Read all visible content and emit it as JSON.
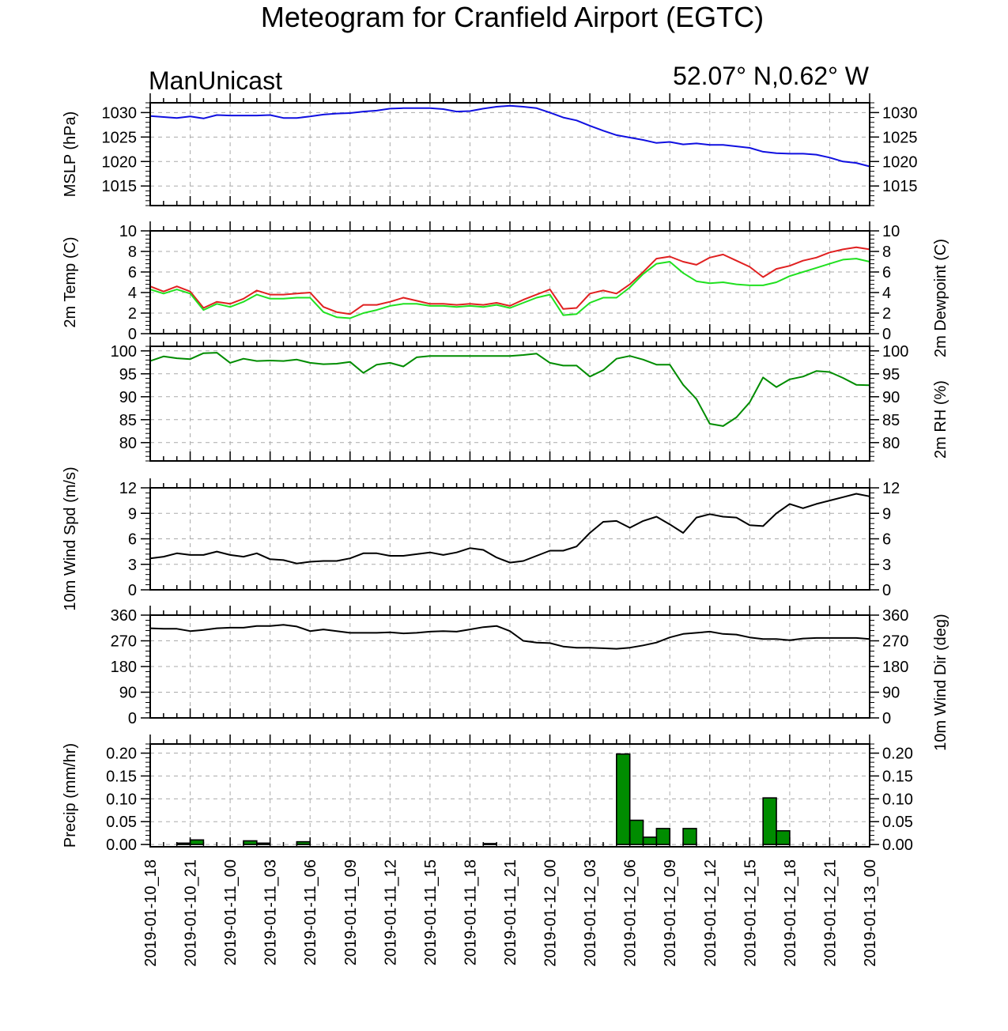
{
  "title": "Meteogram for Cranfield Airport (EGTC)",
  "subtitle_left": "ManUnicast",
  "subtitle_right": "52.07° N,0.62° W",
  "colors": {
    "mslp": "#1010e0",
    "temp": "#e02020",
    "dewpoint": "#20e020",
    "rh": "#008c00",
    "wind": "#000000",
    "precip_fill": "#008c00",
    "grid": "#aaaaaa"
  },
  "x_tick_labels": [
    "2019-01-10_18",
    "2019-01-10_21",
    "2019-01-11_00",
    "2019-01-11_03",
    "2019-01-11_06",
    "2019-01-11_09",
    "2019-01-11_12",
    "2019-01-11_15",
    "2019-01-11_18",
    "2019-01-11_21",
    "2019-01-12_00",
    "2019-01-12_03",
    "2019-01-12_06",
    "2019-01-12_09",
    "2019-01-12_12",
    "2019-01-12_15",
    "2019-01-12_18",
    "2019-01-12_21",
    "2019-01-13_00"
  ],
  "chart_data": [
    {
      "type": "line",
      "ylabel": "MSLP (hPa)",
      "ylabel_right": "",
      "ylim": [
        1011,
        1032
      ],
      "yticks": [
        1015,
        1020,
        1025,
        1030
      ],
      "series": [
        {
          "color_key": "mslp",
          "values": [
            1029.3,
            1029.1,
            1028.9,
            1029.2,
            1028.8,
            1029.5,
            1029.4,
            1029.4,
            1029.4,
            1029.5,
            1028.9,
            1028.9,
            1029.2,
            1029.6,
            1029.8,
            1029.9,
            1030.2,
            1030.4,
            1030.8,
            1030.9,
            1030.9,
            1030.9,
            1030.7,
            1030.2,
            1030.3,
            1030.8,
            1031.2,
            1031.4,
            1031.2,
            1030.9,
            1030.0,
            1029.0,
            1028.4,
            1027.3,
            1026.3,
            1025.4,
            1024.9,
            1024.4,
            1023.8,
            1024.0,
            1023.5,
            1023.7,
            1023.4,
            1023.4,
            1023.1,
            1022.8,
            1022.0,
            1021.7,
            1021.6,
            1021.6,
            1021.4,
            1020.8,
            1020.0,
            1019.7,
            1019.0
          ]
        }
      ]
    },
    {
      "type": "line",
      "ylabel": "2m Temp (C)",
      "ylabel_right": "2m Dewpoint (C)",
      "ylim": [
        0,
        10
      ],
      "yticks": [
        0,
        2,
        4,
        6,
        8,
        10
      ],
      "series": [
        {
          "color_key": "temp",
          "values": [
            4.6,
            4.1,
            4.6,
            4.1,
            2.5,
            3.1,
            2.9,
            3.4,
            4.2,
            3.8,
            3.8,
            3.9,
            4.0,
            2.6,
            2.1,
            1.9,
            2.8,
            2.8,
            3.1,
            3.5,
            3.2,
            2.9,
            2.9,
            2.8,
            2.9,
            2.8,
            3.0,
            2.7,
            3.3,
            3.8,
            4.3,
            2.4,
            2.5,
            3.9,
            4.2,
            3.9,
            4.8,
            6.0,
            7.3,
            7.5,
            7.0,
            6.7,
            7.4,
            7.7,
            7.1,
            6.5,
            5.5,
            6.3,
            6.6,
            7.1,
            7.4,
            7.9,
            8.2,
            8.4,
            8.2
          ]
        },
        {
          "color_key": "dewpoint",
          "values": [
            4.3,
            3.9,
            4.3,
            3.9,
            2.3,
            2.9,
            2.6,
            3.1,
            3.8,
            3.4,
            3.4,
            3.5,
            3.5,
            2.1,
            1.6,
            1.5,
            2.0,
            2.3,
            2.7,
            2.9,
            2.9,
            2.7,
            2.7,
            2.6,
            2.7,
            2.6,
            2.8,
            2.5,
            3.0,
            3.5,
            3.8,
            1.8,
            1.9,
            3.0,
            3.5,
            3.5,
            4.5,
            5.8,
            6.8,
            7.0,
            5.9,
            5.1,
            4.9,
            5.0,
            4.8,
            4.7,
            4.7,
            5.0,
            5.6,
            6.0,
            6.4,
            6.8,
            7.2,
            7.3,
            7.0
          ]
        }
      ]
    },
    {
      "type": "line",
      "ylabel": "",
      "ylabel_right": "2m RH (%)",
      "ylim": [
        76,
        101
      ],
      "yticks": [
        80,
        85,
        90,
        95,
        100
      ],
      "series": [
        {
          "color_key": "rh",
          "values": [
            97.8,
            98.8,
            98.4,
            98.2,
            99.5,
            99.6,
            97.4,
            98.3,
            97.8,
            97.9,
            97.8,
            98.1,
            97.4,
            97.1,
            97.2,
            97.6,
            95.2,
            97.0,
            97.4,
            96.6,
            98.6,
            98.9,
            98.9,
            98.9,
            98.9,
            98.9,
            98.9,
            98.9,
            99.1,
            99.4,
            97.4,
            96.8,
            96.8,
            94.4,
            95.8,
            98.3,
            98.9,
            98.1,
            97.0,
            97.0,
            92.6,
            89.5,
            84.1,
            83.6,
            85.5,
            88.8,
            94.2,
            92.1,
            93.8,
            94.4,
            95.6,
            95.4,
            94.1,
            92.6,
            92.5
          ]
        }
      ]
    },
    {
      "type": "line",
      "ylabel": "10m Wind Spd (m/s)",
      "ylabel_right": "",
      "ylim": [
        0,
        12
      ],
      "yticks": [
        0,
        3,
        6,
        9,
        12
      ],
      "series": [
        {
          "color_key": "wind",
          "values": [
            3.7,
            3.9,
            4.3,
            4.1,
            4.1,
            4.5,
            4.1,
            3.9,
            4.3,
            3.6,
            3.5,
            3.1,
            3.3,
            3.4,
            3.4,
            3.7,
            4.3,
            4.3,
            4.0,
            4.0,
            4.2,
            4.4,
            4.1,
            4.4,
            4.9,
            4.7,
            3.8,
            3.2,
            3.4,
            4.0,
            4.6,
            4.6,
            5.1,
            6.7,
            8.0,
            8.1,
            7.3,
            8.1,
            8.6,
            7.7,
            6.7,
            8.5,
            8.9,
            8.6,
            8.5,
            7.6,
            7.5,
            9.0,
            10.1,
            9.6,
            10.1,
            10.5,
            10.9,
            11.3,
            11.0
          ]
        }
      ]
    },
    {
      "type": "line",
      "ylabel": "",
      "ylabel_right": "10m Wind Dir (deg)",
      "ylim": [
        0,
        360
      ],
      "yticks": [
        0,
        90,
        180,
        270,
        360
      ],
      "series": [
        {
          "color_key": "wind",
          "values": [
            314,
            312,
            312,
            304,
            308,
            314,
            316,
            316,
            322,
            322,
            326,
            320,
            304,
            310,
            304,
            298,
            298,
            298,
            300,
            296,
            298,
            302,
            304,
            302,
            310,
            318,
            322,
            304,
            270,
            264,
            262,
            250,
            246,
            246,
            244,
            242,
            246,
            254,
            264,
            282,
            294,
            298,
            302,
            294,
            292,
            282,
            276,
            276,
            272,
            278,
            280,
            280,
            280,
            280,
            276
          ]
        }
      ]
    },
    {
      "type": "bar",
      "ylabel": "Precip (mm/hr)",
      "ylabel_right": "",
      "ylim": [
        -0.005,
        0.22
      ],
      "yticks": [
        0.0,
        0.05,
        0.1,
        0.15,
        0.2
      ],
      "ytick_labels": [
        "0.00",
        "0.05",
        "0.10",
        "0.15",
        "0.20"
      ],
      "values": [
        0,
        0,
        0.003,
        0.01,
        0,
        0,
        0,
        0.008,
        0.003,
        0,
        0,
        0.006,
        0,
        0,
        0,
        0,
        0,
        0,
        0,
        0,
        0,
        0,
        0,
        0,
        0,
        0.002,
        0,
        0,
        0,
        0,
        0,
        0,
        0,
        0,
        0,
        0.198,
        0.053,
        0.016,
        0.035,
        0,
        0.035,
        0,
        0,
        0,
        0,
        0,
        0.102,
        0.03,
        0,
        0,
        0,
        0,
        0,
        0,
        0
      ]
    }
  ]
}
